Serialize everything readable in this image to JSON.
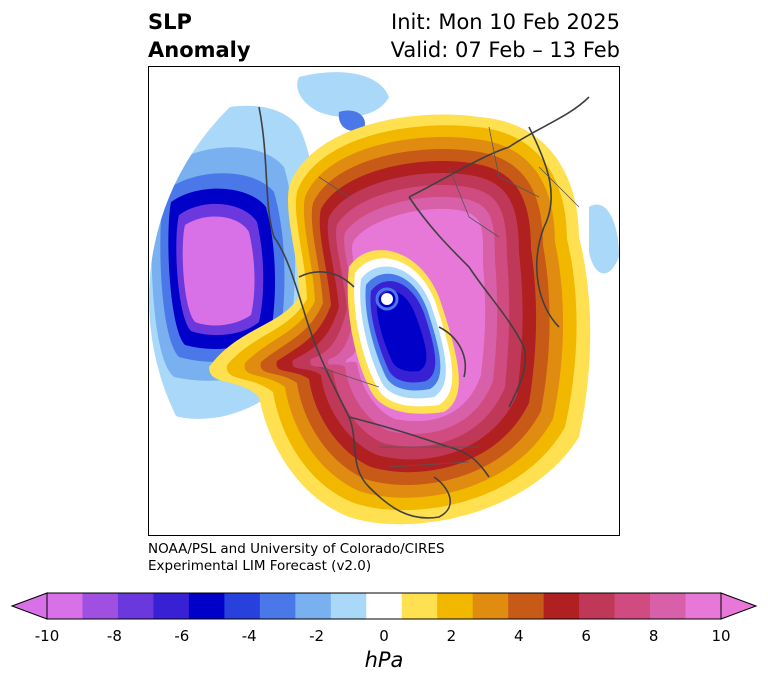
{
  "title": {
    "left_line1": "SLP",
    "left_line2": "Anomaly",
    "right_line1": "Init: Mon 10 Feb 2025",
    "right_line2": "Valid: 07 Feb – 13 Feb"
  },
  "credit": {
    "line1": "NOAA/PSL and University of Colorado/CIRES",
    "line2": "Experimental LIM Forecast (v2.0)"
  },
  "colorbar": {
    "unit": "hPa",
    "tick_labels": [
      "-10",
      "-8",
      "-6",
      "-4",
      "-2",
      "0",
      "2",
      "4",
      "6",
      "8",
      "10"
    ],
    "levels": [
      -10,
      -9,
      -8,
      -7,
      -6,
      -5,
      -4,
      -3,
      -2,
      -1,
      1,
      2,
      3,
      4,
      5,
      6,
      7,
      8,
      9,
      10
    ],
    "colors": [
      "#d870e8",
      "#a050e0",
      "#6a38dc",
      "#3820d4",
      "#0000c8",
      "#2840dc",
      "#4a78e8",
      "#78b0f0",
      "#aad8f8",
      "#ffffff",
      "#ffe050",
      "#f2b800",
      "#e08c10",
      "#c85a18",
      "#b02020",
      "#c03858",
      "#d04c80",
      "#d860a8",
      "#e878d8"
    ],
    "under_color": "#d870e8",
    "over_color": "#e878d8"
  },
  "map": {
    "projection": "North polar stereographic",
    "field": "sea level pressure anomaly"
  }
}
